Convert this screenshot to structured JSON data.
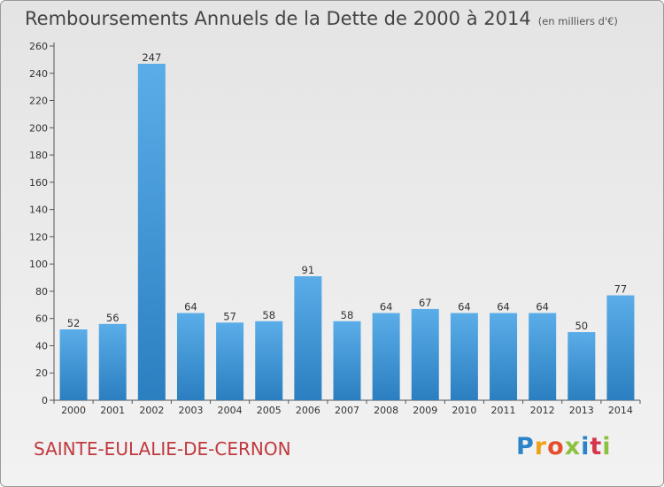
{
  "header": {
    "title": "Remboursements Annuels de la Dette de 2000 à 2014",
    "unit": "(en milliers d'€)"
  },
  "commune": "SAINTE-EULALIE-DE-CERNON",
  "logo": {
    "text": "Proxiti"
  },
  "colors": {
    "bar_top": "#5aade8",
    "bar_bottom": "#2b7fc0",
    "commune": "#c0393f"
  },
  "chart_data": {
    "type": "bar",
    "title": "Remboursements Annuels de la Dette de 2000 à 2014",
    "subtitle": "(en milliers d'€)",
    "xlabel": "",
    "ylabel": "",
    "categories": [
      "2000",
      "2001",
      "2002",
      "2003",
      "2004",
      "2005",
      "2006",
      "2007",
      "2008",
      "2009",
      "2010",
      "2011",
      "2012",
      "2013",
      "2014"
    ],
    "values": [
      52,
      56,
      247,
      64,
      57,
      58,
      91,
      58,
      64,
      67,
      64,
      64,
      64,
      50,
      77
    ],
    "ylim": [
      0,
      260
    ],
    "yticks": [
      0,
      20,
      40,
      60,
      80,
      100,
      120,
      140,
      160,
      180,
      200,
      220,
      240,
      260
    ],
    "grid": false,
    "legend": "none"
  }
}
